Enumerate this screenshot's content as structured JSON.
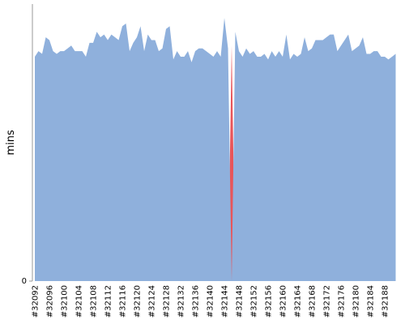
{
  "chart_data": {
    "type": "area",
    "y_label": "mins",
    "categories": [
      "#32092",
      null,
      null,
      null,
      "#32096",
      null,
      null,
      null,
      "#32100",
      null,
      null,
      null,
      "#32104",
      null,
      null,
      null,
      "#32108",
      null,
      null,
      null,
      "#32112",
      null,
      null,
      null,
      "#32116",
      null,
      null,
      null,
      "#32120",
      null,
      null,
      null,
      "#32124",
      null,
      null,
      null,
      "#32128",
      null,
      null,
      null,
      "#32132",
      null,
      null,
      null,
      "#32136",
      null,
      null,
      null,
      "#32140",
      null,
      null,
      null,
      "#32144",
      null,
      null,
      null,
      "#32148",
      null,
      null,
      null,
      "#32152",
      null,
      null,
      null,
      "#32156",
      null,
      null,
      null,
      "#32160",
      null,
      null,
      null,
      "#32164",
      null,
      null,
      null,
      "#32168",
      null,
      null,
      null,
      "#32172",
      null,
      null,
      null,
      "#32176",
      null,
      null,
      null,
      "#32180",
      null,
      null,
      null,
      "#32184",
      null,
      null,
      null,
      "#32188",
      null,
      null,
      null
    ],
    "series": [
      {
        "color": "#e8555a",
        "values": [
          0,
          0,
          0,
          0,
          0,
          0,
          0,
          0,
          0,
          0,
          0,
          0,
          0,
          0,
          0,
          0,
          0,
          0,
          0,
          0,
          0,
          0,
          0,
          0,
          0,
          0,
          0,
          0,
          0,
          0,
          0,
          0,
          0,
          0,
          0,
          0,
          0,
          0,
          0,
          0,
          0,
          0,
          0,
          0,
          0,
          0,
          0,
          0,
          0,
          0,
          0,
          0,
          0,
          0,
          8.5,
          0,
          0,
          0,
          0,
          0,
          0,
          0,
          0,
          0,
          0,
          0,
          0,
          0,
          0,
          0,
          0,
          0,
          0,
          0,
          0,
          0,
          0,
          0,
          0,
          0,
          0,
          0,
          0,
          0,
          0,
          0,
          0,
          0,
          0,
          0,
          0,
          0,
          0,
          0,
          0,
          0,
          0,
          0,
          0,
          0
        ]
      },
      {
        "color": "#8fb0dc",
        "values": [
          8.1,
          8.3,
          8.2,
          8.8,
          8.7,
          8.3,
          8.2,
          8.3,
          8.3,
          8.4,
          8.5,
          8.3,
          8.3,
          8.3,
          8.1,
          8.6,
          8.6,
          9.0,
          8.8,
          8.9,
          8.7,
          8.9,
          8.8,
          8.7,
          9.2,
          9.3,
          8.3,
          8.6,
          8.8,
          9.2,
          8.3,
          8.9,
          8.7,
          8.7,
          8.3,
          8.4,
          9.1,
          9.2,
          8.0,
          8.3,
          8.1,
          8.1,
          8.3,
          7.9,
          8.3,
          8.4,
          8.4,
          8.3,
          8.2,
          8.1,
          8.3,
          8.1,
          9.5,
          8.4,
          0,
          9.0,
          8.3,
          8.1,
          8.4,
          8.2,
          8.3,
          8.1,
          8.1,
          8.2,
          8.0,
          8.3,
          8.1,
          8.3,
          8.1,
          8.9,
          8.0,
          8.2,
          8.1,
          8.2,
          8.8,
          8.3,
          8.4,
          8.7,
          8.7,
          8.7,
          8.8,
          8.9,
          8.9,
          8.3,
          8.5,
          8.7,
          8.9,
          8.3,
          8.4,
          8.5,
          8.8,
          8.2,
          8.2,
          8.3,
          8.3,
          8.1,
          8.1,
          8.0,
          8.1,
          8.2
        ]
      }
    ],
    "ylim": [
      0,
      10
    ],
    "yticks": [
      0
    ]
  }
}
